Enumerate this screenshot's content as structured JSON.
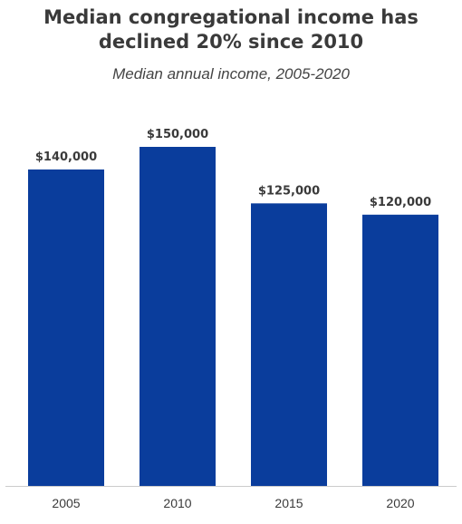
{
  "title_lines": [
    "Median congregational income has",
    "declined 20% since 2010"
  ],
  "subtitle": "Median annual income, 2005-2020",
  "colors": {
    "bar": "#0a3d9c",
    "axis": "#cccccc",
    "text": "#3a3a3a"
  },
  "chart_data": {
    "type": "bar",
    "categories": [
      "2005",
      "2010",
      "2015",
      "2020"
    ],
    "values": [
      140000,
      150000,
      125000,
      120000
    ],
    "data_labels": [
      "$140,000",
      "$150,000",
      "$125,000",
      "$120,000"
    ],
    "title": "Median congregational income has declined 20% since 2010",
    "subtitle": "Median annual income, 2005-2020",
    "xlabel": "",
    "ylabel": "",
    "ylim": [
      0,
      150000
    ],
    "grid": false,
    "legend": "none"
  }
}
